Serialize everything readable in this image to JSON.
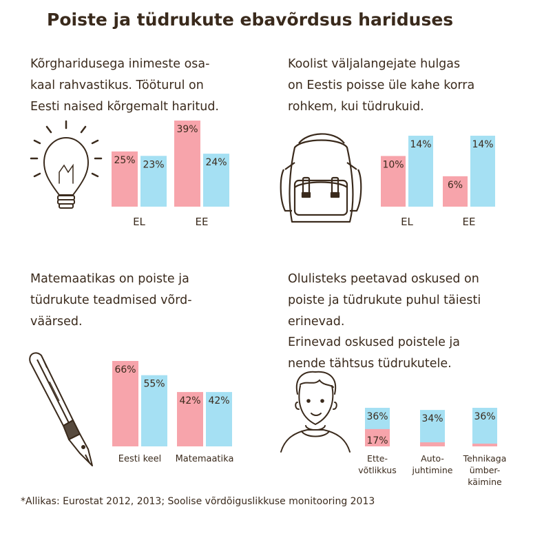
{
  "title": "Poiste ja tüdrukute ebavõrdsus hariduses",
  "colors": {
    "girls": "#f7a4ab",
    "boys": "#a5e0f3",
    "ink": "#3a2a1c"
  },
  "icons": [
    "light-bulb-icon",
    "backpack-icon",
    "fountain-pen-icon",
    "boy-icon"
  ],
  "panels": {
    "education": {
      "lines": [
        "Kõrgharidusega inimeste osa-",
        "kaal rahvastikus. Tööturul on",
        "Eesti naised kõrgemalt haritud."
      ]
    },
    "dropout": {
      "lines": [
        "Koolist väljalangejate hulgas",
        "on Eestis poisse üle kahe korra",
        "rohkem, kui tüdrukuid."
      ]
    },
    "math": {
      "lines": [
        "Matemaatikas on poiste ja",
        "tüdrukute teadmised võrd-",
        "väärsed."
      ]
    },
    "skills": {
      "lines": [
        "Olulisteks peetavad oskused on",
        "poiste ja tüdrukute puhul täiesti",
        "erinevad."
      ],
      "lines2": [
        "Erinevad oskused poistele ja",
        "nende tähtsus tüdrukutele."
      ]
    }
  },
  "source": "*Allikas: Eurostat 2012, 2013; Soolise võrdõiguslikkuse monitooring 2013",
  "chart_data": [
    {
      "type": "bar",
      "title": "",
      "categories": [
        "EL",
        "EE"
      ],
      "series": [
        {
          "values": [
            25,
            39
          ]
        },
        {
          "values": [
            23,
            24
          ]
        }
      ],
      "value_labels": [
        [
          "25%",
          "39%"
        ],
        [
          "23%",
          "24%"
        ]
      ],
      "ylim": [
        0,
        39
      ]
    },
    {
      "type": "bar",
      "title": "",
      "categories": [
        "EL",
        "EE"
      ],
      "series": [
        {
          "values": [
            10,
            6
          ]
        },
        {
          "values": [
            14,
            14
          ]
        }
      ],
      "value_labels": [
        [
          "10%",
          "6%"
        ],
        [
          "14%",
          "14%"
        ]
      ],
      "ylim": [
        0,
        14
      ]
    },
    {
      "type": "bar",
      "title": "",
      "categories": [
        "Eesti keel",
        "Matemaatika"
      ],
      "series": [
        {
          "values": [
            66,
            42
          ]
        },
        {
          "values": [
            55,
            42
          ]
        }
      ],
      "value_labels": [
        [
          "66%",
          "42%"
        ],
        [
          "55%",
          "42%"
        ]
      ],
      "ylim": [
        0,
        66
      ]
    },
    {
      "type": "bar",
      "title": "",
      "categories": [
        [
          "Ette-",
          "võtlikkus"
        ],
        [
          "Auto-",
          "juhtimine"
        ],
        [
          "Tehnikaga",
          "ümber-",
          "käimine"
        ]
      ],
      "series": [
        {
          "values": [
            17,
            4,
            2
          ]
        },
        {
          "values": [
            36,
            34,
            36
          ]
        }
      ],
      "value_labels": [
        [
          "17%",
          "",
          ""
        ],
        [
          "36%",
          "34%",
          "36%"
        ]
      ],
      "ylim": [
        0,
        36
      ]
    }
  ]
}
